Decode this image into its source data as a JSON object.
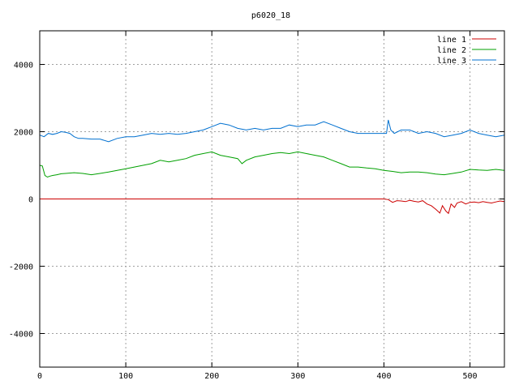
{
  "chart_data": {
    "type": "line",
    "title": "p6020_18",
    "xlabel": "",
    "ylabel": "",
    "xlim": [
      0,
      540
    ],
    "ylim": [
      -5000,
      5000
    ],
    "xticks": [
      0,
      100,
      200,
      300,
      400,
      500
    ],
    "yticks": [
      -4000,
      -2000,
      0,
      2000,
      4000
    ],
    "grid": true,
    "legend_position": "top-right",
    "series": [
      {
        "name": "line 1",
        "color": "#cc0000",
        "x": [
          0,
          50,
          100,
          150,
          200,
          250,
          300,
          350,
          400,
          405,
          410,
          415,
          420,
          425,
          430,
          435,
          440,
          445,
          450,
          455,
          460,
          465,
          468,
          472,
          475,
          478,
          482,
          485,
          490,
          495,
          500,
          505,
          510,
          515,
          520,
          525,
          530,
          535,
          540
        ],
        "y": [
          0,
          0,
          0,
          0,
          0,
          0,
          0,
          0,
          0,
          -20,
          -100,
          -50,
          -60,
          -80,
          -40,
          -70,
          -90,
          -50,
          -150,
          -200,
          -300,
          -420,
          -200,
          -360,
          -430,
          -150,
          -250,
          -120,
          -80,
          -150,
          -100,
          -90,
          -110,
          -80,
          -100,
          -120,
          -90,
          -60,
          -80
        ]
      },
      {
        "name": "line 2",
        "color": "#00a000",
        "x": [
          0,
          3,
          6,
          9,
          12,
          15,
          20,
          25,
          30,
          40,
          50,
          60,
          70,
          80,
          90,
          100,
          110,
          120,
          130,
          140,
          150,
          160,
          170,
          180,
          190,
          200,
          210,
          220,
          230,
          235,
          240,
          250,
          260,
          270,
          280,
          290,
          300,
          310,
          320,
          330,
          340,
          350,
          360,
          370,
          380,
          390,
          400,
          410,
          420,
          430,
          440,
          450,
          460,
          470,
          480,
          490,
          500,
          510,
          520,
          530,
          540
        ],
        "y": [
          1000,
          980,
          700,
          650,
          680,
          700,
          720,
          750,
          760,
          780,
          760,
          720,
          760,
          800,
          850,
          900,
          950,
          1000,
          1050,
          1150,
          1100,
          1150,
          1200,
          1300,
          1350,
          1400,
          1300,
          1250,
          1200,
          1050,
          1150,
          1250,
          1300,
          1350,
          1380,
          1350,
          1400,
          1350,
          1300,
          1250,
          1150,
          1050,
          950,
          950,
          920,
          900,
          850,
          820,
          780,
          800,
          800,
          780,
          740,
          720,
          760,
          800,
          880,
          860,
          850,
          880,
          850
        ]
      },
      {
        "name": "line 3",
        "color": "#0070d0",
        "x": [
          0,
          5,
          10,
          15,
          20,
          25,
          30,
          35,
          40,
          45,
          50,
          60,
          70,
          80,
          90,
          100,
          110,
          120,
          130,
          140,
          150,
          160,
          170,
          180,
          190,
          200,
          210,
          220,
          230,
          240,
          250,
          260,
          270,
          280,
          290,
          300,
          310,
          320,
          330,
          340,
          350,
          360,
          370,
          380,
          390,
          400,
          403,
          405,
          408,
          412,
          420,
          430,
          440,
          450,
          460,
          470,
          480,
          490,
          500,
          510,
          520,
          530,
          540
        ],
        "y": [
          1900,
          1850,
          1950,
          1920,
          1950,
          2000,
          1980,
          1950,
          1850,
          1800,
          1800,
          1780,
          1780,
          1700,
          1800,
          1850,
          1850,
          1900,
          1950,
          1920,
          1950,
          1920,
          1950,
          2000,
          2050,
          2150,
          2250,
          2200,
          2100,
          2050,
          2100,
          2050,
          2100,
          2100,
          2200,
          2150,
          2200,
          2200,
          2300,
          2200,
          2100,
          2000,
          1950,
          1950,
          1950,
          1950,
          1950,
          2350,
          2050,
          1950,
          2050,
          2050,
          1950,
          2000,
          1950,
          1850,
          1900,
          1950,
          2050,
          1950,
          1900,
          1850,
          1900
        ]
      }
    ]
  }
}
